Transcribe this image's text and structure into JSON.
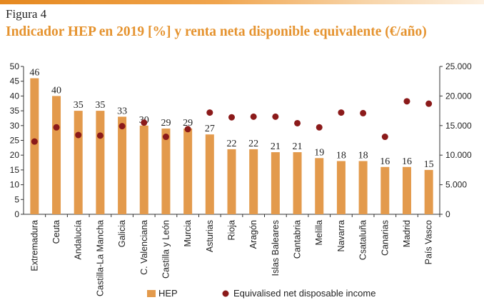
{
  "figure_label": "Figura 4",
  "chart_data": {
    "type": "bar",
    "title": "Indicador HEP en 2019 [%] y renta neta disponible equivalente (€/año)",
    "categories": [
      "Extremadura",
      "Ceuta",
      "Andalucía",
      "Castilla-La Mancha",
      "Galicia",
      "C. Valenciana",
      "Castilla y León",
      "Murcia",
      "Asturias",
      "Rioja",
      "Aragón",
      "Islas Baleares",
      "Cantabria",
      "Melilla",
      "Navarra",
      "Csataluña",
      "Canarias",
      "Madrid",
      "País Vasco"
    ],
    "series": [
      {
        "name": "HEP",
        "type": "bar",
        "axis": "left",
        "color": "#e39a4c",
        "values": [
          46,
          40,
          35,
          35,
          33,
          30,
          29,
          29,
          27,
          22,
          22,
          21,
          21,
          19,
          18,
          18,
          16,
          16,
          15
        ]
      },
      {
        "name": "Equivalised net disposable income",
        "type": "scatter",
        "axis": "right",
        "color": "#8b1a1a",
        "values": [
          12300,
          14700,
          13400,
          13300,
          14900,
          15500,
          13100,
          14400,
          17200,
          16400,
          16500,
          16500,
          15400,
          14700,
          17200,
          17100,
          13100,
          19100,
          18700
        ]
      }
    ],
    "ylim_left": [
      0,
      50
    ],
    "yticks_left": [
      "0",
      "5",
      "10",
      "15",
      "20",
      "25",
      "30",
      "35",
      "40",
      "45",
      "50"
    ],
    "ylim_right": [
      0,
      25000
    ],
    "yticks_right": [
      "0",
      "5.000",
      "10.000",
      "15.000",
      "20.000",
      "25.000"
    ],
    "legend_position": "bottom",
    "grid": false
  }
}
